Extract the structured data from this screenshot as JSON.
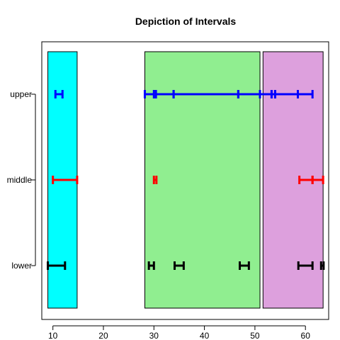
{
  "chart_data": {
    "type": "interval",
    "title": "Depiction of Intervals",
    "xlabel": "",
    "ylabel": "",
    "xlim": [
      7.8,
      64.6
    ],
    "x_ticks": [
      10,
      20,
      30,
      40,
      50,
      60
    ],
    "categories": [
      "lower",
      "middle",
      "upper"
    ],
    "regions": [
      {
        "from": 9.0,
        "to": 14.8,
        "color": "#00ffff"
      },
      {
        "from": 28.2,
        "to": 51.0,
        "color": "#90ee90"
      },
      {
        "from": 51.6,
        "to": 63.5,
        "color": "#dda0dd"
      }
    ],
    "series": [
      {
        "category": "upper",
        "color": "#0000ff",
        "intervals": [
          [
            10.5,
            11.9
          ],
          [
            28.2,
            30.0
          ],
          [
            30.4,
            33.9
          ],
          [
            33.9,
            46.7
          ],
          [
            46.7,
            51.0
          ],
          [
            51.0,
            53.3
          ],
          [
            53.3,
            54.0
          ],
          [
            54.0,
            58.5
          ],
          [
            58.5,
            61.4
          ]
        ]
      },
      {
        "category": "middle",
        "color": "#ff0000",
        "intervals": [
          [
            10.0,
            14.8
          ],
          [
            30.0,
            30.5
          ],
          [
            58.8,
            61.4
          ],
          [
            61.4,
            63.5
          ]
        ]
      },
      {
        "category": "lower",
        "color": "#000000",
        "intervals": [
          [
            9.0,
            12.4
          ],
          [
            29.0,
            30.0
          ],
          [
            34.1,
            35.9
          ],
          [
            47.0,
            48.8
          ],
          [
            58.6,
            61.4
          ],
          [
            63.1,
            63.6
          ]
        ]
      }
    ]
  }
}
